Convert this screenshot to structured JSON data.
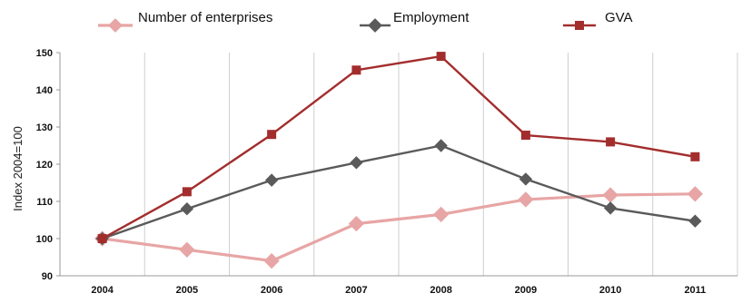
{
  "chart_data": {
    "type": "line",
    "title": "",
    "xlabel": "",
    "ylabel": "Index 2004=100",
    "categories": [
      "2004",
      "2005",
      "2006",
      "2007",
      "2008",
      "2009",
      "2010",
      "2011"
    ],
    "ylim": [
      90,
      150
    ],
    "yticks": [
      90,
      100,
      110,
      120,
      130,
      140,
      150
    ],
    "grid": "vertical",
    "legend": "top",
    "series": [
      {
        "name": "Number of enterprises",
        "values": [
          100,
          97,
          94,
          104,
          106.5,
          110.5,
          111.7,
          112
        ],
        "color": "#e8a5a5",
        "marker": "diamond"
      },
      {
        "name": "Employment",
        "values": [
          100,
          108,
          115.7,
          120.4,
          125,
          116,
          108.2,
          104.7
        ],
        "color": "#5a5a5a",
        "marker": "diamond"
      },
      {
        "name": "GVA",
        "values": [
          100,
          112.6,
          128,
          145.3,
          149,
          127.8,
          126,
          122
        ],
        "color": "#a32d2d",
        "marker": "square"
      }
    ]
  }
}
